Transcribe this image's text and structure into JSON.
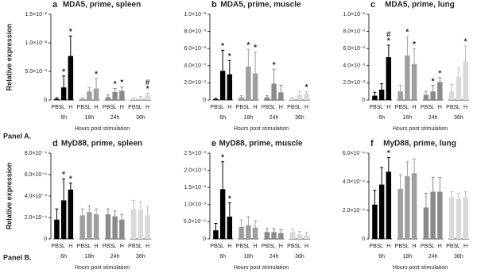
{
  "panel_labels": [
    "Panel A.",
    "Panel B."
  ],
  "chart_data": [
    {
      "type": "bar",
      "letter": "a",
      "title": "MDA5, prime, spleen",
      "ylabel": "Relative expression",
      "xlabel": "Hours post stimulation",
      "categories": [
        "PBS",
        "L",
        "H"
      ],
      "ylim": [
        0,
        0.015
      ],
      "yticks": [
        0,
        {
          "value": 0.005,
          "label": "5.0×10⁻³"
        },
        {
          "value": 0.01,
          "label": "1.0×10⁻²"
        },
        {
          "value": 0.015,
          "label": "1.5×10⁻²"
        }
      ],
      "series": [
        {
          "name": "6h",
          "color": "#000000",
          "values": [
            0.0002,
            0.0022,
            0.0077
          ],
          "errors": [
            0.0002,
            0.002,
            0.0035
          ],
          "marks": [
            null,
            [
              "*"
            ],
            [
              "*"
            ]
          ]
        },
        {
          "name": "18h",
          "color": "#9e9e9e",
          "values": [
            0.0002,
            0.0015,
            0.002
          ],
          "errors": [
            0.0002,
            0.0007,
            0.0018
          ],
          "marks": [
            null,
            null,
            [
              "*"
            ]
          ]
        },
        {
          "name": "24h",
          "color": "#8a8a8a",
          "values": [
            0.0005,
            0.0014,
            0.0016
          ],
          "errors": [
            0.0004,
            0.0006,
            0.0007
          ],
          "marks": [
            null,
            [
              "*"
            ],
            [
              "*"
            ]
          ]
        },
        {
          "name": "36h",
          "color": "#d9d9d9",
          "values": [
            0.0002,
            0.0003,
            0.0008
          ],
          "errors": [
            0.0002,
            0.0003,
            0.0004
          ],
          "marks": [
            null,
            null,
            [
              "#",
              "*"
            ]
          ]
        }
      ]
    },
    {
      "type": "bar",
      "letter": "b",
      "title": "MDA5, prime, muscle",
      "xlabel": "Hours post stimulation",
      "categories": [
        "PBS",
        "L",
        "H"
      ],
      "ylim": [
        0,
        0.01
      ],
      "yticks": [
        0,
        {
          "value": 0.002,
          "label": "2.0×10⁻³"
        },
        {
          "value": 0.004,
          "label": "4.0×10⁻³"
        },
        {
          "value": 0.006,
          "label": "6.0×10⁻³"
        },
        {
          "value": 0.008,
          "label": "8.0×10⁻³"
        },
        {
          "value": 0.01,
          "label": "1.0×10⁻²"
        }
      ],
      "series": [
        {
          "name": "6h",
          "color": "#000000",
          "values": [
            0.0001,
            0.0034,
            0.003
          ],
          "errors": [
            0.0001,
            0.0024,
            0.0016
          ],
          "marks": [
            null,
            [
              "*"
            ],
            [
              "*"
            ]
          ]
        },
        {
          "name": "18h",
          "color": "#9e9e9e",
          "values": [
            0.0003,
            0.0039,
            0.0031
          ],
          "errors": [
            0.0002,
            0.002,
            0.0025
          ],
          "marks": [
            null,
            [
              "*"
            ],
            [
              "*"
            ]
          ]
        },
        {
          "name": "24h",
          "color": "#8a8a8a",
          "values": [
            0.0003,
            0.0019,
            0.0009
          ],
          "errors": [
            0.0002,
            0.0017,
            0.0008
          ],
          "marks": [
            null,
            [
              "*"
            ],
            null
          ]
        },
        {
          "name": "36h",
          "color": "#d9d9d9",
          "values": [
            0.0002,
            0.0006,
            0.0007
          ],
          "errors": [
            0.0001,
            0.0004,
            0.0003
          ],
          "marks": [
            null,
            null,
            [
              "*"
            ]
          ]
        }
      ]
    },
    {
      "type": "bar",
      "letter": "c",
      "title": "MDA5, prime, lung",
      "xlabel": "Hours post stimulation",
      "categories": [
        "PBS",
        "L",
        "H"
      ],
      "ylim": [
        0,
        0.01
      ],
      "yticks": [
        0,
        {
          "value": 0.002,
          "label": "2.0×10⁻³"
        },
        {
          "value": 0.004,
          "label": "4.0×10⁻³"
        },
        {
          "value": 0.006,
          "label": "6.0×10⁻³"
        },
        {
          "value": 0.008,
          "label": "8.0×10⁻³"
        },
        {
          "value": 0.01,
          "label": "1.0×10⁻²"
        }
      ],
      "series": [
        {
          "name": "6h",
          "color": "#000000",
          "values": [
            0.0005,
            0.0012,
            0.005
          ],
          "errors": [
            0.0004,
            0.0007,
            0.0014
          ],
          "marks": [
            null,
            null,
            [
              "#",
              "*"
            ]
          ]
        },
        {
          "name": "18h",
          "color": "#9e9e9e",
          "values": [
            0.001,
            0.0052,
            0.0042
          ],
          "errors": [
            0.0007,
            0.0022,
            0.0018
          ],
          "marks": [
            null,
            [
              "*"
            ],
            [
              "*"
            ]
          ]
        },
        {
          "name": "24h",
          "color": "#8a8a8a",
          "values": [
            0.0006,
            0.001,
            0.0021
          ],
          "errors": [
            0.0004,
            0.0007,
            0.0005
          ],
          "marks": [
            null,
            [
              "*"
            ],
            [
              "*"
            ]
          ]
        },
        {
          "name": "36h",
          "color": "#d9d9d9",
          "values": [
            0.001,
            0.0027,
            0.0045
          ],
          "errors": [
            0.0008,
            0.001,
            0.0018
          ],
          "marks": [
            null,
            null,
            [
              "*"
            ]
          ]
        }
      ]
    },
    {
      "type": "bar",
      "letter": "d",
      "title": "MyD88, prime, spleen",
      "ylabel": "Relative expression",
      "xlabel": "Hours post stimulation",
      "categories": [
        "PBS",
        "L",
        "H"
      ],
      "ylim": [
        0,
        0.0008
      ],
      "yticks": [
        0,
        {
          "value": 0.0002,
          "label": "2.0×10⁻⁴"
        },
        {
          "value": 0.0004,
          "label": "4.0×10⁻⁴"
        },
        {
          "value": 0.0006,
          "label": "6.0×10⁻⁴"
        },
        {
          "value": 0.0008,
          "label": "8.0×10⁻⁴"
        }
      ],
      "series": [
        {
          "name": "6h",
          "color": "#000000",
          "values": [
            0.00018,
            0.00036,
            0.00046
          ],
          "errors": [
            0.0001,
            0.0002,
            6e-05
          ],
          "marks": [
            null,
            [
              "*"
            ],
            [
              "*"
            ]
          ]
        },
        {
          "name": "18h",
          "color": "#9e9e9e",
          "values": [
            0.00022,
            0.00025,
            0.00023
          ],
          "errors": [
            6e-05,
            6e-05,
            5e-05
          ],
          "marks": [
            null,
            null,
            null
          ]
        },
        {
          "name": "24h",
          "color": "#8a8a8a",
          "values": [
            0.00023,
            0.00021,
            0.00018
          ],
          "errors": [
            5e-05,
            5e-05,
            5e-05
          ],
          "marks": [
            null,
            null,
            null
          ]
        },
        {
          "name": "36h",
          "color": "#d9d9d9",
          "values": [
            0.00028,
            0.00027,
            0.00022
          ],
          "errors": [
            8e-05,
            8e-05,
            8e-05
          ],
          "marks": [
            null,
            null,
            null
          ]
        }
      ]
    },
    {
      "type": "bar",
      "letter": "e",
      "title": "MyD88, prime, muscle",
      "xlabel": "Hours post stimulation",
      "categories": [
        "PBS",
        "L",
        "H"
      ],
      "ylim": [
        0,
        0.0025
      ],
      "yticks": [
        0,
        {
          "value": 0.0005,
          "label": "5.0×10⁻⁴"
        },
        {
          "value": 0.001,
          "label": "1.0×10⁻³"
        },
        {
          "value": 0.0015,
          "label": "1.5×10⁻³"
        },
        {
          "value": 0.002,
          "label": "2.0×10⁻³"
        },
        {
          "value": 0.0025,
          "label": "2.5×10⁻³"
        }
      ],
      "series": [
        {
          "name": "6h",
          "color": "#000000",
          "values": [
            0.00025,
            0.00145,
            0.00065
          ],
          "errors": [
            0.0002,
            0.0008,
            0.0004
          ],
          "marks": [
            null,
            [
              "*"
            ],
            [
              "*"
            ]
          ]
        },
        {
          "name": "18h",
          "color": "#9e9e9e",
          "values": [
            0.00035,
            0.0004,
            0.00033
          ],
          "errors": [
            0.0002,
            0.00025,
            0.0002
          ],
          "marks": [
            null,
            null,
            null
          ]
        },
        {
          "name": "24h",
          "color": "#8a8a8a",
          "values": [
            0.0002,
            0.0002,
            0.00017
          ],
          "errors": [
            0.0001,
            0.0001,
            0.0001
          ],
          "marks": [
            null,
            null,
            null
          ]
        },
        {
          "name": "36h",
          "color": "#d9d9d9",
          "values": [
            0.0002,
            0.00012,
            0.0001
          ],
          "errors": [
            0.0001,
            0.0001,
            0.0001
          ],
          "marks": [
            null,
            null,
            null
          ]
        }
      ]
    },
    {
      "type": "bar",
      "letter": "f",
      "title": "MyD88, prime, lung",
      "xlabel": "Hours post stimulation",
      "categories": [
        "PBS",
        "L",
        "H"
      ],
      "ylim": [
        0,
        0.0006
      ],
      "yticks": [
        0,
        {
          "value": 0.0002,
          "label": "2.0×10⁻⁴"
        },
        {
          "value": 0.0004,
          "label": "4.0×10⁻⁴"
        },
        {
          "value": 0.0006,
          "label": "6.0×10⁻⁴"
        }
      ],
      "series": [
        {
          "name": "6h",
          "color": "#000000",
          "values": [
            0.00024,
            0.00038,
            0.00047
          ],
          "errors": [
            0.0001,
            0.00012,
            0.0001
          ],
          "marks": [
            null,
            null,
            [
              "*"
            ]
          ]
        },
        {
          "name": "18h",
          "color": "#9e9e9e",
          "values": [
            0.00035,
            0.00044,
            0.00046
          ],
          "errors": [
            0.0001,
            0.0001,
            0.0001
          ],
          "marks": [
            null,
            null,
            null
          ]
        },
        {
          "name": "24h",
          "color": "#8a8a8a",
          "values": [
            0.00022,
            0.00033,
            0.00033
          ],
          "errors": [
            0.0001,
            0.0001,
            0.0001
          ],
          "marks": [
            null,
            null,
            null
          ]
        },
        {
          "name": "36h",
          "color": "#d9d9d9",
          "values": [
            0.00029,
            0.00028,
            0.00029
          ],
          "errors": [
            4e-05,
            4e-05,
            4e-05
          ],
          "marks": [
            null,
            null,
            null
          ]
        }
      ]
    }
  ]
}
